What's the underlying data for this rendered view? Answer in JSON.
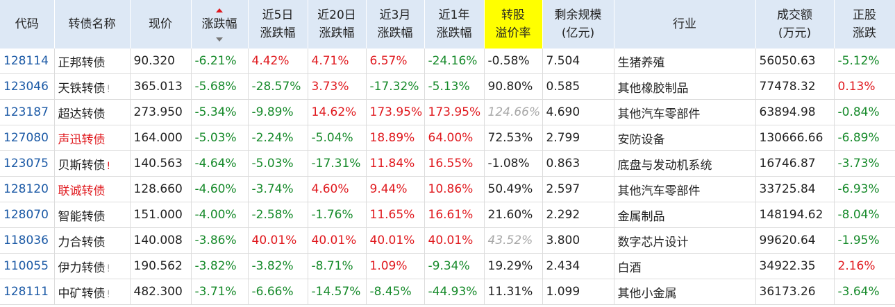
{
  "table": {
    "columns": [
      {
        "lines": [
          "代码"
        ]
      },
      {
        "lines": [
          "转债名称"
        ]
      },
      {
        "lines": [
          "现价"
        ]
      },
      {
        "lines": [
          "涨跌幅"
        ],
        "sorted": "desc"
      },
      {
        "lines": [
          "近5日",
          "涨跌幅"
        ]
      },
      {
        "lines": [
          "近20日",
          "涨跌幅"
        ]
      },
      {
        "lines": [
          "近3月",
          "涨跌幅"
        ]
      },
      {
        "lines": [
          "近1年",
          "涨跌幅"
        ]
      },
      {
        "lines": [
          "转股",
          "溢价率"
        ],
        "highlight": true
      },
      {
        "lines": [
          "剩余规模",
          "(亿元)"
        ]
      },
      {
        "lines": [
          "行业"
        ]
      },
      {
        "lines": [
          "成交额",
          "(万元)"
        ]
      },
      {
        "lines": [
          "正股",
          "涨跌"
        ]
      }
    ],
    "rows": [
      {
        "cells": [
          "128114",
          "正邦转债",
          "90.320",
          "-6.21%",
          "4.42%",
          "4.71%",
          "6.57%",
          "-24.16%",
          "-0.58%",
          "7.504",
          "生猪养殖",
          "56050.63",
          "-5.12%"
        ],
        "tones": [
          "code",
          "plain",
          "plain",
          "down",
          "up",
          "up",
          "up",
          "down",
          "plain",
          "plain",
          "plain",
          "plain",
          "down"
        ]
      },
      {
        "cells": [
          "123046",
          "天铁转债",
          "365.013",
          "-5.68%",
          "-28.57%",
          "3.73%",
          "-17.32%",
          "-5.13%",
          "90.80%",
          "0.585",
          "其他橡胶制品",
          "77478.32",
          "0.13%"
        ],
        "tones": [
          "code",
          "plain",
          "plain",
          "down",
          "down",
          "up",
          "down",
          "down",
          "plain",
          "plain",
          "plain",
          "plain",
          "up"
        ],
        "flag": "!",
        "flag_tone": "muted"
      },
      {
        "cells": [
          "123187",
          "超达转债",
          "273.950",
          "-5.34%",
          "-9.89%",
          "14.62%",
          "173.95%",
          "173.95%",
          "124.66%",
          "4.690",
          "其他汽车零部件",
          "63894.98",
          "-0.84%"
        ],
        "tones": [
          "code",
          "plain",
          "plain",
          "down",
          "down",
          "up",
          "up",
          "up",
          "muted",
          "plain",
          "plain",
          "plain",
          "down"
        ]
      },
      {
        "cells": [
          "127080",
          "声迅转债",
          "164.000",
          "-5.03%",
          "-2.24%",
          "-5.04%",
          "18.89%",
          "64.00%",
          "72.53%",
          "2.799",
          "安防设备",
          "130666.66",
          "-6.89%"
        ],
        "tones": [
          "code",
          "up",
          "plain",
          "down",
          "down",
          "down",
          "up",
          "up",
          "plain",
          "plain",
          "plain",
          "plain",
          "down"
        ]
      },
      {
        "cells": [
          "123075",
          "贝斯转债",
          "140.563",
          "-4.64%",
          "-5.03%",
          "-17.31%",
          "11.84%",
          "16.55%",
          "-1.08%",
          "0.863",
          "底盘与发动机系统",
          "16746.87",
          "-3.73%"
        ],
        "tones": [
          "code",
          "plain",
          "plain",
          "down",
          "down",
          "down",
          "up",
          "up",
          "plain",
          "plain",
          "plain",
          "plain",
          "down"
        ],
        "flag": "!",
        "flag_tone": "up"
      },
      {
        "cells": [
          "128120",
          "联诚转债",
          "128.660",
          "-4.60%",
          "-3.74%",
          "4.60%",
          "9.44%",
          "10.86%",
          "50.49%",
          "2.597",
          "其他汽车零部件",
          "33725.84",
          "-6.93%"
        ],
        "tones": [
          "code",
          "up",
          "plain",
          "down",
          "down",
          "up",
          "up",
          "up",
          "plain",
          "plain",
          "plain",
          "plain",
          "down"
        ]
      },
      {
        "cells": [
          "128070",
          "智能转债",
          "151.000",
          "-4.00%",
          "-2.58%",
          "-1.76%",
          "11.65%",
          "16.61%",
          "21.60%",
          "2.292",
          "金属制品",
          "148194.62",
          "-8.04%"
        ],
        "tones": [
          "code",
          "plain",
          "plain",
          "down",
          "down",
          "down",
          "up",
          "up",
          "plain",
          "plain",
          "plain",
          "plain",
          "down"
        ]
      },
      {
        "cells": [
          "118036",
          "力合转债",
          "140.008",
          "-3.86%",
          "40.01%",
          "40.01%",
          "40.01%",
          "40.01%",
          "43.52%",
          "3.800",
          "数字芯片设计",
          "99620.64",
          "-1.95%"
        ],
        "tones": [
          "code",
          "plain",
          "plain",
          "down",
          "up",
          "up",
          "up",
          "up",
          "muted",
          "plain",
          "plain",
          "plain",
          "down"
        ]
      },
      {
        "cells": [
          "110055",
          "伊力转债",
          "190.562",
          "-3.82%",
          "-3.82%",
          "-8.71%",
          "1.09%",
          "-9.34%",
          "19.29%",
          "2.434",
          "白酒",
          "34922.35",
          "2.16%"
        ],
        "tones": [
          "code",
          "plain",
          "plain",
          "down",
          "down",
          "down",
          "up",
          "down",
          "plain",
          "plain",
          "plain",
          "plain",
          "up"
        ],
        "flag": "!",
        "flag_tone": "muted"
      },
      {
        "cells": [
          "128111",
          "中矿转债",
          "482.300",
          "-3.71%",
          "-6.66%",
          "-14.57%",
          "-8.45%",
          "-44.93%",
          "11.31%",
          "1.099",
          "其他小金属",
          "36173.26",
          "-3.64%"
        ],
        "tones": [
          "code",
          "plain",
          "plain",
          "down",
          "down",
          "down",
          "down",
          "down",
          "plain",
          "plain",
          "plain",
          "plain",
          "down"
        ],
        "flag": "!",
        "flag_tone": "muted"
      }
    ]
  }
}
